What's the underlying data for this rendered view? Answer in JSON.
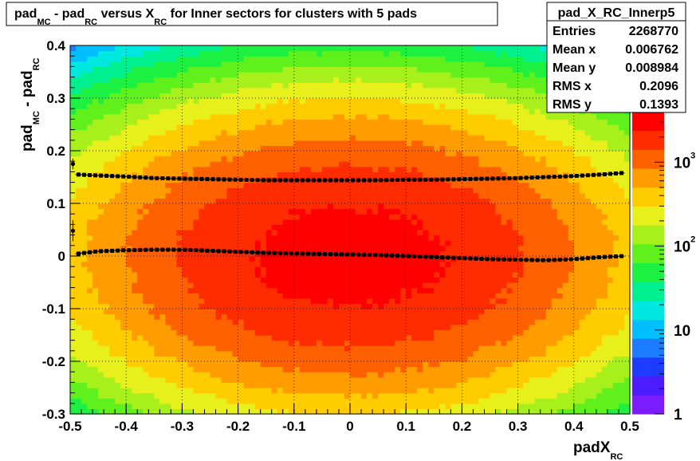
{
  "chart_data": {
    "type": "heatmap",
    "title": {
      "parts": [
        "pad",
        "MC",
        " - pad",
        "RC",
        " versus X",
        "RC",
        " for Inner sectors for clusters with 5 pads"
      ]
    },
    "xlabel": {
      "main": "padX",
      "sub": "RC"
    },
    "ylabel": {
      "main": "pad",
      "sub1": "MC",
      "mid": " - pad",
      "sub2": "RC"
    },
    "xlim": [
      -0.5,
      0.5
    ],
    "ylim": [
      -0.3,
      0.4
    ],
    "x_ticks": [
      "-0.5",
      "-0.4",
      "-0.3",
      "-0.2",
      "-0.1",
      "0",
      "0.1",
      "0.2",
      "0.3",
      "0.4",
      "0.5"
    ],
    "x_tick_values": [
      -0.5,
      -0.4,
      -0.3,
      -0.2,
      -0.1,
      0,
      0.1,
      0.2,
      0.3,
      0.4,
      0.5
    ],
    "y_ticks": [
      "-0.3",
      "-0.2",
      "-0.1",
      "0",
      "0.1",
      "0.2",
      "0.3",
      "0.4"
    ],
    "y_tick_values": [
      -0.3,
      -0.2,
      -0.1,
      0,
      0.1,
      0.2,
      0.3,
      0.4
    ],
    "grid": true,
    "colorbar": {
      "scale": "log",
      "range": [
        1,
        4000
      ],
      "labels": [
        "1",
        "10",
        "10",
        "10"
      ],
      "exponents": [
        "",
        "",
        "2",
        "3"
      ],
      "label_values": [
        1,
        10,
        100,
        1000
      ]
    },
    "density_profile": {
      "x_sigma": 0.25,
      "y_sigma": 0.14,
      "y_center": 0.0,
      "peak": 3000
    },
    "profile_mean": {
      "x": [
        -0.49,
        -0.45,
        -0.4,
        -0.35,
        -0.3,
        -0.25,
        -0.2,
        -0.15,
        -0.1,
        -0.05,
        0,
        0.05,
        0.1,
        0.15,
        0.2,
        0.25,
        0.3,
        0.35,
        0.4,
        0.45,
        0.49
      ],
      "y": [
        0.004,
        0.009,
        0.011,
        0.012,
        0.012,
        0.01,
        0.008,
        0.006,
        0.005,
        0.004,
        0.003,
        0.002,
        0.0,
        -0.002,
        -0.004,
        -0.006,
        -0.007,
        -0.008,
        -0.006,
        -0.002,
        0.0
      ]
    },
    "profile_rms": {
      "x": [
        -0.49,
        -0.45,
        -0.4,
        -0.35,
        -0.3,
        -0.25,
        -0.2,
        -0.15,
        -0.1,
        -0.05,
        0,
        0.05,
        0.1,
        0.15,
        0.2,
        0.25,
        0.3,
        0.35,
        0.4,
        0.45,
        0.49
      ],
      "y": [
        0.155,
        0.153,
        0.151,
        0.148,
        0.147,
        0.146,
        0.145,
        0.144,
        0.144,
        0.144,
        0.144,
        0.144,
        0.145,
        0.145,
        0.146,
        0.147,
        0.148,
        0.15,
        0.152,
        0.155,
        0.158
      ]
    },
    "edge_points": [
      {
        "x": -0.495,
        "y": 0.175,
        "err": 0.01
      },
      {
        "x": -0.495,
        "y": 0.048,
        "err": 0.02
      }
    ],
    "stats": {
      "name": "pad_X_RC_Innerp5",
      "rows": [
        {
          "label": "Entries",
          "value": "2268770"
        },
        {
          "label": "Mean x",
          "value": "0.006762"
        },
        {
          "label": "Mean y",
          "value": "0.008984"
        },
        {
          "label": "RMS x",
          "value": "0.2096"
        },
        {
          "label": "RMS y",
          "value": "0.1393"
        }
      ]
    },
    "colors": {
      "palette": [
        "#7a1cff",
        "#4a1cff",
        "#1c3cff",
        "#1c7cff",
        "#00bfff",
        "#00e8e0",
        "#00f090",
        "#1cf040",
        "#60f01c",
        "#a8f01c",
        "#e8f01c",
        "#ffcc00",
        "#ff9c00",
        "#ff6000",
        "#ff2c00",
        "#ff0000"
      ]
    }
  }
}
